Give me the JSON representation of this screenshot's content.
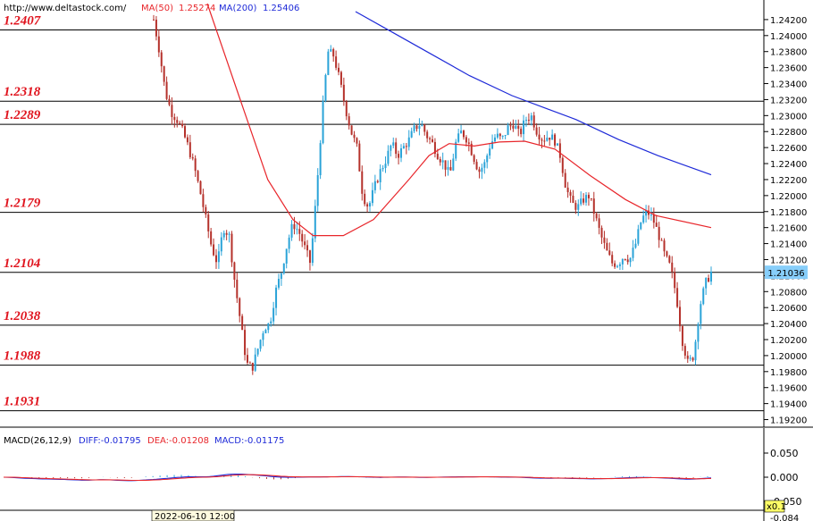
{
  "header": {
    "site": "http://www.deltastock.com/",
    "ma50_label": "MA(50)",
    "ma50_value": "1.25274",
    "ma200_label": "MA(200)",
    "ma200_value": "1.25406",
    "ma50_color": "#e8262b",
    "ma200_color": "#1e2ad8"
  },
  "macd_header": {
    "title": "MACD(26,12,9)",
    "diff": "DIFF:-0.01795",
    "dea": "DEA:-0.01208",
    "macd": "MACD:-0.01175"
  },
  "footer": {
    "timestamp": "2022-06-10 12:00",
    "zoom_label": "x0.1",
    "clipped_tick": "-0.084"
  },
  "chart_data": {
    "type": "candlestick",
    "price_axis": {
      "ylim": [
        1.1915,
        1.244
      ],
      "ticks": [
        "1.24200",
        "1.24000",
        "1.23800",
        "1.23600",
        "1.23400",
        "1.23200",
        "1.23000",
        "1.22800",
        "1.22600",
        "1.22400",
        "1.22200",
        "1.22000",
        "1.21800",
        "1.21600",
        "1.21400",
        "1.21200",
        "1.21000",
        "1.20800",
        "1.20600",
        "1.20400",
        "1.20200",
        "1.20000",
        "1.19800",
        "1.19600",
        "1.19400",
        "1.19200"
      ],
      "current_price": "1.21036",
      "current_price_value": 1.21036
    },
    "levels": [
      {
        "label": "1.2407",
        "value": 1.2407
      },
      {
        "label": "1.2318",
        "value": 1.2318
      },
      {
        "label": "1.2289",
        "value": 1.2289
      },
      {
        "label": "1.2179",
        "value": 1.2179
      },
      {
        "label": "1.2104",
        "value": 1.2104
      },
      {
        "label": "1.2038",
        "value": 1.2038
      },
      {
        "label": "1.1988",
        "value": 1.1988
      },
      {
        "label": "1.1931",
        "value": 1.1931
      }
    ],
    "close_path": [
      1.242,
      1.238,
      1.233,
      1.2305,
      1.2295,
      1.228,
      1.226,
      1.2235,
      1.2205,
      1.217,
      1.2135,
      1.2115,
      1.216,
      1.215,
      1.209,
      1.204,
      1.199,
      1.1985,
      1.201,
      1.2035,
      1.204,
      1.208,
      1.2105,
      1.214,
      1.2165,
      1.2155,
      1.2135,
      1.2115,
      1.22,
      1.23,
      1.238,
      1.2375,
      1.2345,
      1.231,
      1.228,
      1.226,
      1.22,
      1.2185,
      1.221,
      1.223,
      1.2245,
      1.2265,
      1.225,
      1.226,
      1.227,
      1.2285,
      1.229,
      1.2275,
      1.2265,
      1.225,
      1.224,
      1.2225,
      1.2265,
      1.228,
      1.227,
      1.225,
      1.223,
      1.224,
      1.2265,
      1.2275,
      1.227,
      1.2285,
      1.229,
      1.2275,
      1.2295,
      1.23,
      1.228,
      1.227,
      1.2275,
      1.227,
      1.225,
      1.221,
      1.219,
      1.2185,
      1.2195,
      1.22,
      1.2175,
      1.215,
      1.213,
      1.2115,
      1.2115,
      1.2125,
      1.212,
      1.214,
      1.217,
      1.218,
      1.217,
      1.215,
      1.2125,
      1.211,
      1.2075,
      1.202,
      1.199,
      1.2,
      1.206,
      1.209,
      1.2104
    ],
    "ma50": [
      [
        1.244,
        0
      ],
      [
        1.233,
        0.06
      ],
      [
        1.222,
        0.12
      ],
      [
        1.217,
        0.17
      ],
      [
        1.215,
        0.21
      ],
      [
        1.215,
        0.27
      ],
      [
        1.217,
        0.33
      ],
      [
        1.222,
        0.4
      ],
      [
        1.225,
        0.44
      ],
      [
        1.2265,
        0.48
      ],
      [
        1.2262,
        0.53
      ],
      [
        1.2267,
        0.58
      ],
      [
        1.2268,
        0.63
      ],
      [
        1.2258,
        0.69
      ],
      [
        1.2225,
        0.76
      ],
      [
        1.2195,
        0.83
      ],
      [
        1.2175,
        0.89
      ],
      [
        1.216,
        1.0
      ]
    ],
    "ma200": [
      [
        1.243,
        0
      ],
      [
        1.2405,
        0.1
      ],
      [
        1.238,
        0.2
      ],
      [
        1.235,
        0.32
      ],
      [
        1.2325,
        0.44
      ],
      [
        1.231,
        0.53
      ],
      [
        1.2295,
        0.62
      ],
      [
        1.227,
        0.74
      ],
      [
        1.225,
        0.85
      ],
      [
        1.2226,
        1.0
      ]
    ],
    "macd_axis": {
      "ticks": [
        "0.050",
        "0.000",
        "-0.050"
      ]
    }
  }
}
